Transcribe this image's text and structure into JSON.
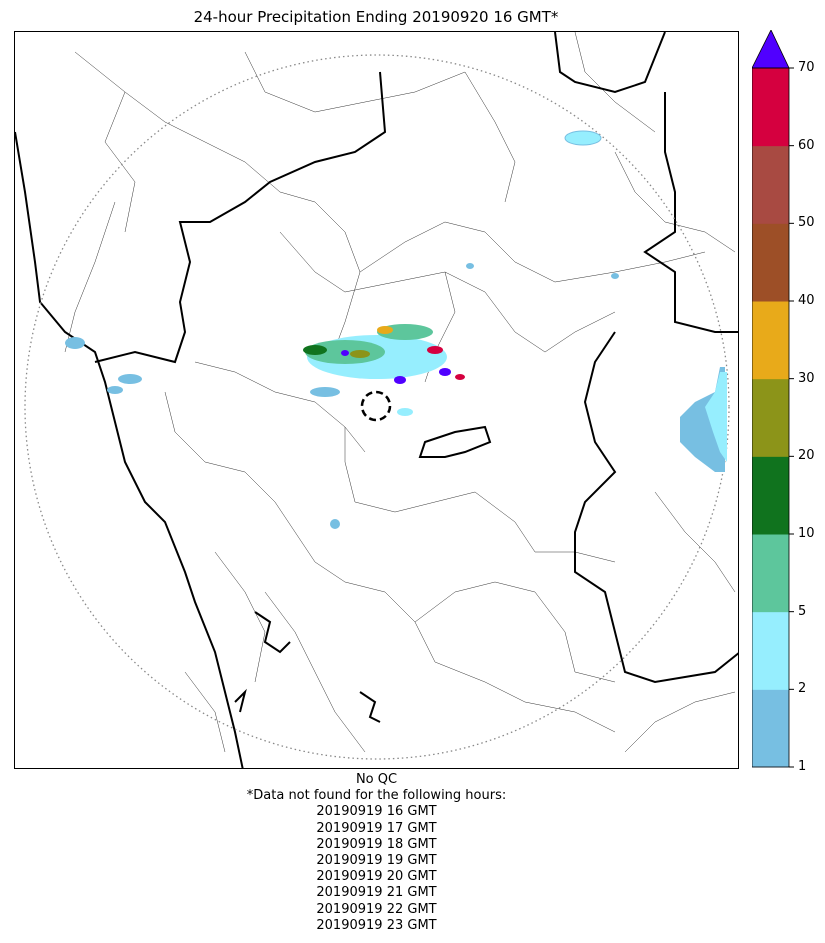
{
  "title": "24-hour Precipitation Ending 20190920 16 GMT*",
  "colorbar": {
    "ticks": [
      "1",
      "2",
      "5",
      "10",
      "20",
      "30",
      "40",
      "50",
      "60",
      "70"
    ],
    "colors": [
      "#77bfe2",
      "#96eefe",
      "#5dc69c",
      "#10731e",
      "#8c9419",
      "#e8aa1a",
      "#9d4f27",
      "#a84a42",
      "#d5003f"
    ],
    "extend_color": "#5000ff"
  },
  "map": {
    "radar_range_ring": "dotted",
    "radar_site_marker": "dashed-circle",
    "land_color": "#ffffff",
    "boundary_color": "#000000"
  },
  "notes": {
    "qc": "No QC",
    "missing_header": "*Data not found for the following hours:",
    "missing_hours": [
      "20190919 16 GMT",
      "20190919 17 GMT",
      "20190919 18 GMT",
      "20190919 19 GMT",
      "20190919 20 GMT",
      "20190919 21 GMT",
      "20190919 22 GMT",
      "20190919 23 GMT"
    ]
  }
}
